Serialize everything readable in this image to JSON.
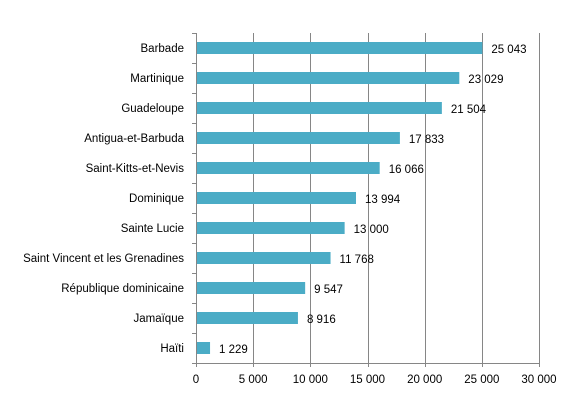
{
  "chart_data": {
    "type": "bar",
    "orientation": "horizontal",
    "categories": [
      "Barbade",
      "Martinique",
      "Guadeloupe",
      "Antigua-et-Barbuda",
      "Saint-Kitts-et-Nevis",
      "Dominique",
      "Sainte Lucie",
      "Saint Vincent et les Grenadines",
      "République dominicaine",
      "Jamaïque",
      "Haïti"
    ],
    "values": [
      25043,
      23029,
      21504,
      17833,
      16066,
      13994,
      13000,
      11768,
      9547,
      8916,
      1229
    ],
    "value_labels": [
      "25 043",
      "23 029",
      "21 504",
      "17 833",
      "16 066",
      "13 994",
      "13 000",
      "11 768",
      "9 547",
      "8 916",
      "1 229"
    ],
    "xlim": [
      0,
      30000
    ],
    "x_ticks": [
      0,
      5000,
      10000,
      15000,
      20000,
      25000,
      30000
    ],
    "x_tick_labels": [
      "0",
      "5 000",
      "10 000",
      "15 000",
      "20 000",
      "25 000",
      "30 000"
    ],
    "grid": "vertical",
    "legend": "none",
    "bar_color": "#4BACC6",
    "grid_color": "#868686"
  }
}
